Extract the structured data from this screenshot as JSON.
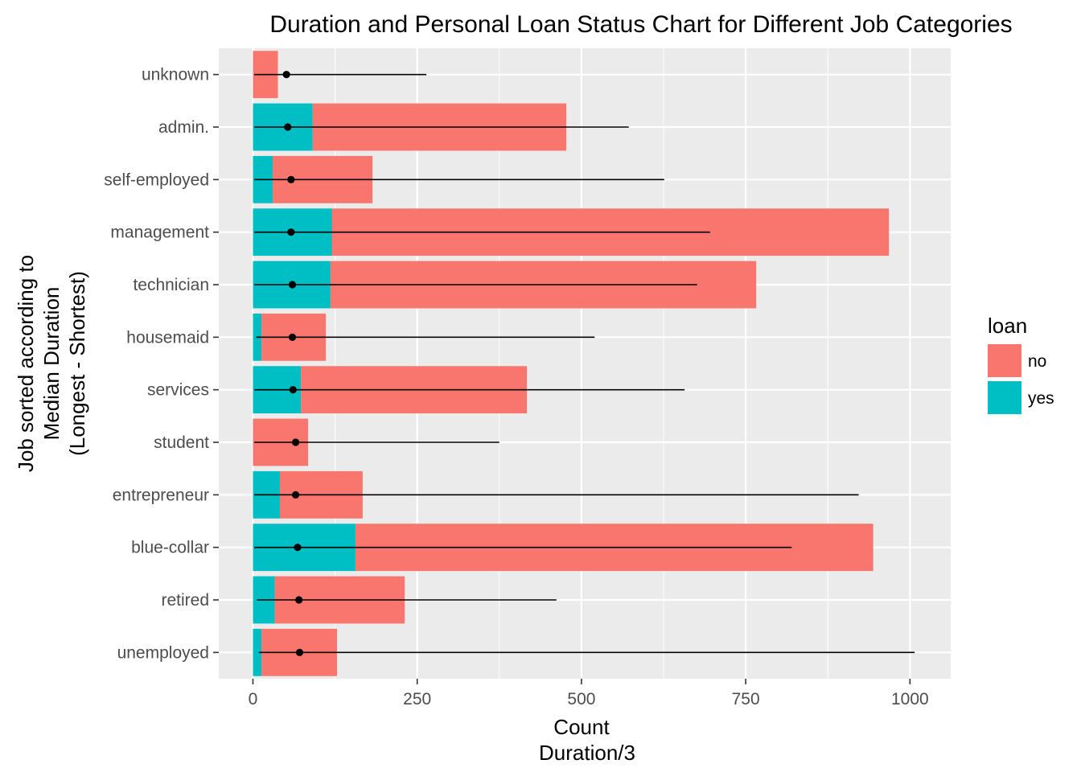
{
  "chart_data": {
    "type": "bar",
    "title": "Duration and Personal Loan Status Chart for Different Job Categories",
    "xlabel_lines": [
      "Count",
      "Duration/3"
    ],
    "ylabel_lines": [
      "Job sorted according to",
      "Median Duration",
      "(Longest - Shortest)"
    ],
    "orientation": "horizontal",
    "stacked": true,
    "categories": [
      "unknown",
      "admin.",
      "self-employed",
      "management",
      "technician",
      "housemaid",
      "services",
      "student",
      "entrepreneur",
      "blue-collar",
      "retired",
      "unemployed"
    ],
    "series": [
      {
        "name": "yes",
        "color": "#00bfc4",
        "values": [
          0,
          91,
          30,
          120,
          118,
          13,
          73,
          0,
          41,
          156,
          33,
          13
        ]
      },
      {
        "name": "no",
        "color": "#f8766d",
        "values": [
          38,
          386,
          152,
          848,
          648,
          98,
          344,
          84,
          126,
          788,
          198,
          115
        ]
      }
    ],
    "duration_ranges": {
      "categories": [
        "unknown",
        "admin.",
        "self-employed",
        "management",
        "technician",
        "housemaid",
        "services",
        "student",
        "entrepreneur",
        "blue-collar",
        "retired",
        "unemployed"
      ],
      "min": [
        2,
        2,
        2,
        2,
        2,
        5,
        2,
        2,
        2,
        2,
        6,
        9
      ],
      "median": [
        51,
        53,
        58,
        58,
        60,
        60,
        61,
        65,
        65,
        68,
        70,
        71
      ],
      "max": [
        264,
        572,
        626,
        696,
        676,
        520,
        657,
        375,
        922,
        820,
        462,
        1007
      ],
      "color": "#000000"
    },
    "xlim": [
      -52,
      1062
    ],
    "xticks": [
      0,
      250,
      500,
      750,
      1000
    ],
    "xtick_labels": [
      "0",
      "250",
      "500",
      "750",
      "1000"
    ],
    "grid": true,
    "panel_background": "#ebebeb",
    "legend": {
      "title": "loan",
      "placement": "right",
      "entries": [
        {
          "label": "no",
          "color": "#f8766d"
        },
        {
          "label": "yes",
          "color": "#00bfc4"
        }
      ]
    }
  }
}
